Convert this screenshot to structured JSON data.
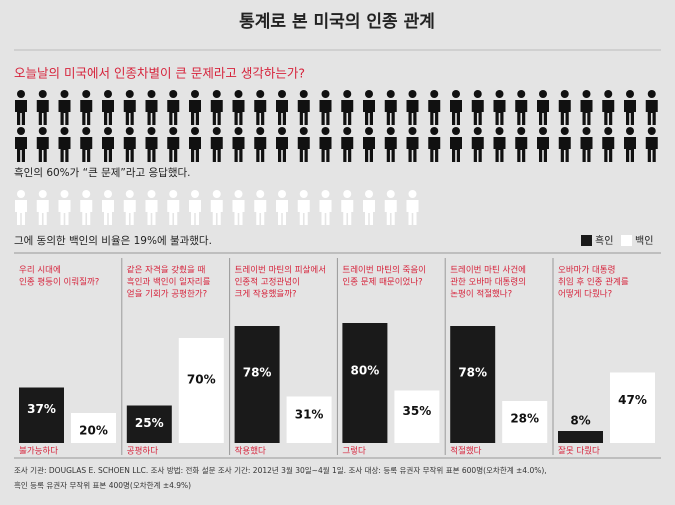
{
  "title": "통계로 본 미국의 인종 관계",
  "question": "오늘날의 미국에서 인종차별이 큰 문제라고 생각하는가?",
  "pictogram": {
    "black_count": 60,
    "black_caption": "흑인의 60%가 “큰 문제”라고 응답했다.",
    "white_count": 19,
    "white_caption": "그에 동의한 백인의 비율은 19%에 불과했다."
  },
  "chart_data": {
    "type": "bar",
    "categories": [
      [
        "우리 시대에",
        "인종 평등이 이뤄질까?"
      ],
      [
        "같은 자격을 갖췄을 때",
        "흑인과 백인이 일자리를",
        "얻을 기회가 공평한가?"
      ],
      [
        "트레이번 마틴의 피살에서",
        "인종적 고정관념이",
        "크게 작용했을까?"
      ],
      [
        "트레이번 마틴의 죽음이",
        "인종 문제 때문이었나?"
      ],
      [
        "트레이번 마틴 사건에",
        "관한 오바마 대통령의",
        "논평이 적절했나?"
      ],
      [
        "오바마가 대통령",
        "취임 후 인종 관계를",
        "어떻게 다뤘나?"
      ]
    ],
    "answers": [
      "불가능하다",
      "공평하다",
      "작용했다",
      "그렇다",
      "적절했다",
      "잘못 다뤘다"
    ],
    "series": [
      {
        "name": "흑인",
        "color": "#1a1a1a",
        "values": [
          37,
          25,
          78,
          80,
          78,
          8
        ],
        "value_labels": [
          "37%",
          "25%",
          "78%",
          "80%",
          "78%",
          "8%"
        ]
      },
      {
        "name": "백인",
        "color": "#ffffff",
        "values": [
          20,
          70,
          31,
          35,
          28,
          47
        ],
        "value_labels": [
          "20%",
          "70%",
          "31%",
          "35%",
          "28%",
          "47%"
        ]
      }
    ]
  },
  "footnote": [
    "조사 기관: DOUGLAS E. SCHOEN LLC. 조사 방법: 전화 설문 조사 기간: 2012년 3월 30일~4월 1일. 조사 대상: 등록 유권자 무작위 표본 600명(오차한계 ±4.0%),",
    "흑인 등록 유권자 무작위 표본 400명(오차한계 ±4.9%)"
  ]
}
